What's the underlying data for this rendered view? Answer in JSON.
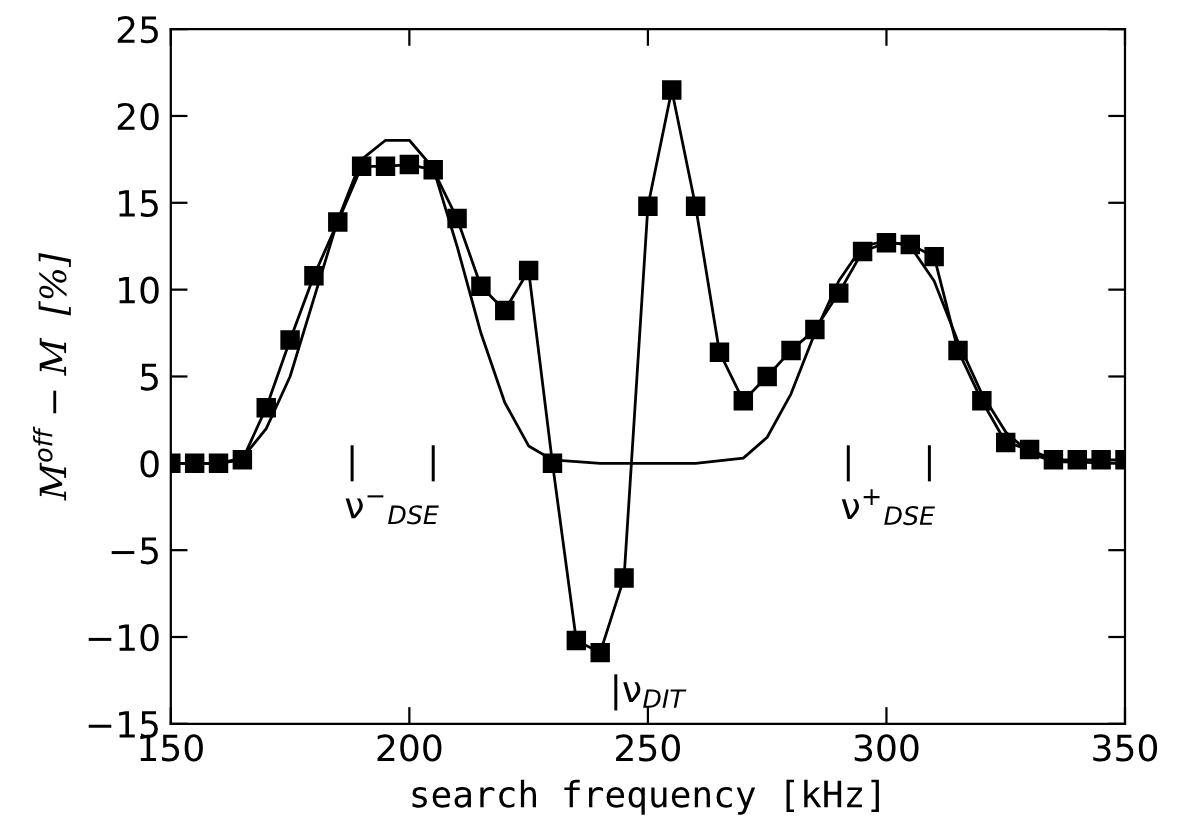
{
  "chart_data": {
    "type": "line",
    "xlabel": "search frequency [kHz]",
    "ylabel": "M$^{off}$ − M  [%]",
    "xlim": [
      150,
      350
    ],
    "xticks": [
      150,
      200,
      250,
      300,
      350
    ],
    "ylim": [
      -15,
      25
    ],
    "yticks": [
      -15,
      -10,
      -5,
      0,
      5,
      10,
      15,
      20,
      25
    ],
    "grid": false,
    "series": [
      {
        "marker": "square",
        "color": "#000000",
        "x": [
          150,
          155,
          160,
          165,
          170,
          175,
          180,
          185,
          190,
          195,
          200,
          205,
          210,
          215,
          220,
          225,
          230,
          235,
          240,
          245,
          250,
          255,
          260,
          265,
          270,
          275,
          280,
          285,
          290,
          295,
          300,
          305,
          310,
          315,
          320,
          325,
          330,
          335,
          340,
          345,
          350
        ],
        "values": [
          0,
          0,
          0,
          0.2,
          3.2,
          7.1,
          10.8,
          13.9,
          17.1,
          17.1,
          17.2,
          16.9,
          14.1,
          10.2,
          8.8,
          11.1,
          0,
          -10.2,
          -10.9,
          -6.6,
          14.8,
          21.5,
          14.8,
          6.4,
          3.6,
          5.0,
          6.5,
          7.7,
          9.8,
          12.2,
          12.7,
          12.6,
          11.9,
          6.5,
          3.6,
          1.2,
          0.8,
          0.2,
          0.2,
          0.2,
          0.2
        ]
      },
      {
        "marker": "none",
        "color": "#000000",
        "x": [
          150,
          160,
          165,
          170,
          175,
          180,
          185,
          190,
          195,
          200,
          205,
          210,
          215,
          220,
          225,
          230,
          240,
          260,
          270,
          275,
          280,
          285,
          290,
          295,
          300,
          305,
          310,
          315,
          320,
          325,
          330,
          335,
          350
        ],
        "values": [
          0,
          0,
          0.3,
          2,
          5,
          9.5,
          14,
          17.5,
          18.6,
          18.6,
          17,
          12.5,
          7.5,
          3.5,
          1,
          0.2,
          0,
          0,
          0.3,
          1.5,
          4,
          7.5,
          10.5,
          12.5,
          12.8,
          12.5,
          10.5,
          7,
          4,
          1.8,
          0.6,
          0.1,
          0
        ]
      }
    ],
    "annotations": [
      "|",
      "|",
      "ν$^{−}$$_{DSE}$",
      "|",
      "|",
      "ν$^{+}$$_{DSE}$",
      "|ν$_{DIT}$"
    ]
  }
}
